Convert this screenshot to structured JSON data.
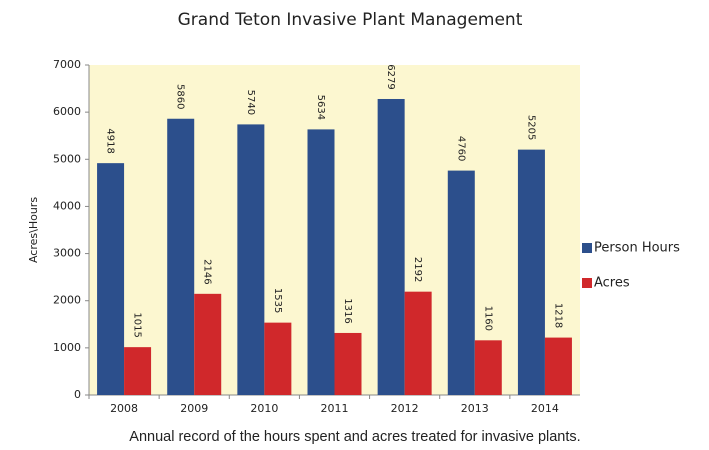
{
  "chart_data": {
    "type": "bar",
    "title": "Grand Teton Invasive Plant Management",
    "y_label": "Acres\\Hours",
    "caption": "Annual record of the hours spent and acres treated for invasive plants.",
    "categories": [
      "2008",
      "2009",
      "2010",
      "2011",
      "2012",
      "2013",
      "2014"
    ],
    "series": [
      {
        "name": "Person Hours",
        "color": "#2c4f8c",
        "values": [
          4918,
          5860,
          5740,
          5634,
          6279,
          4760,
          5205
        ]
      },
      {
        "name": "Acres",
        "color": "#d0282b",
        "values": [
          1015,
          2146,
          1535,
          1316,
          2192,
          1160,
          1218
        ]
      }
    ],
    "ylim": [
      0,
      7000
    ],
    "yticks": [
      0,
      1000,
      2000,
      3000,
      4000,
      5000,
      6000,
      7000
    ],
    "legend": "right",
    "plot_background": "#fcf7d0"
  }
}
